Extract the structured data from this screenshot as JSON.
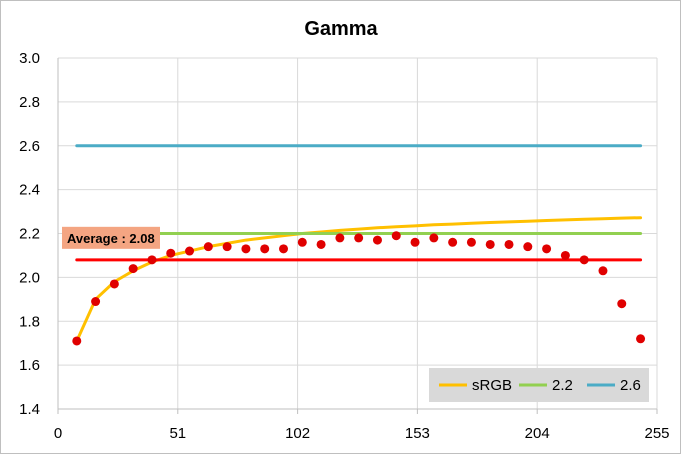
{
  "chart_data": {
    "type": "scatter",
    "title": "Gamma",
    "xlabel": "",
    "ylabel": "",
    "xlim": [
      0,
      255
    ],
    "ylim": [
      1.4,
      3.0
    ],
    "xticks": [
      "0",
      "51",
      "102",
      "153",
      "204",
      "255"
    ],
    "yticks": [
      "1.4",
      "1.6",
      "1.8",
      "2.0",
      "2.2",
      "2.4",
      "2.6",
      "2.8",
      "3.0"
    ],
    "grid": true,
    "legend_position": "bottom-right",
    "series": [
      {
        "name": "sRGB",
        "type": "line",
        "color": "#ffc000",
        "x": [
          8,
          16,
          24,
          32,
          40,
          48,
          56,
          64,
          72,
          80,
          88,
          96,
          104,
          112,
          120,
          128,
          136,
          144,
          152,
          160,
          168,
          176,
          184,
          192,
          200,
          208,
          216,
          224,
          232,
          240,
          248
        ],
        "y": [
          1.71,
          1.9,
          1.98,
          2.03,
          2.07,
          2.1,
          2.12,
          2.14,
          2.155,
          2.17,
          2.18,
          2.19,
          2.2,
          2.207,
          2.214,
          2.22,
          2.226,
          2.231,
          2.235,
          2.24,
          2.243,
          2.247,
          2.25,
          2.253,
          2.256,
          2.259,
          2.262,
          2.265,
          2.267,
          2.27,
          2.272
        ]
      },
      {
        "name": "2.2",
        "type": "line",
        "color": "#92d050",
        "x": [
          8,
          248
        ],
        "y": [
          2.2,
          2.2
        ]
      },
      {
        "name": "2.6",
        "type": "line",
        "color": "#4bacc6",
        "x": [
          8,
          248
        ],
        "y": [
          2.6,
          2.6
        ]
      },
      {
        "name": "",
        "type": "line",
        "color": "#ff0000",
        "x": [
          8,
          248
        ],
        "y": [
          2.08,
          2.08
        ]
      },
      {
        "name": "",
        "type": "scatter",
        "color": "#e00000",
        "x": [
          8,
          16,
          24,
          32,
          40,
          48,
          56,
          64,
          72,
          80,
          88,
          96,
          104,
          112,
          120,
          128,
          136,
          144,
          152,
          160,
          168,
          176,
          184,
          192,
          200,
          208,
          216,
          224,
          232,
          240,
          248
        ],
        "y": [
          1.71,
          1.89,
          1.97,
          2.04,
          2.08,
          2.11,
          2.12,
          2.14,
          2.14,
          2.13,
          2.13,
          2.13,
          2.16,
          2.15,
          2.18,
          2.18,
          2.17,
          2.19,
          2.16,
          2.18,
          2.16,
          2.16,
          2.15,
          2.15,
          2.14,
          2.13,
          2.1,
          2.08,
          2.03,
          1.88,
          1.72
        ]
      }
    ],
    "annotation": {
      "text": "Average : 2.08",
      "x": 8,
      "y": 2.08,
      "background": "#f4a582"
    }
  },
  "legend": {
    "items": [
      {
        "label": "sRGB",
        "color": "#ffc000"
      },
      {
        "label": "2.2",
        "color": "#92d050"
      },
      {
        "label": "2.6",
        "color": "#4bacc6"
      }
    ],
    "background": "#d9d9d9"
  }
}
